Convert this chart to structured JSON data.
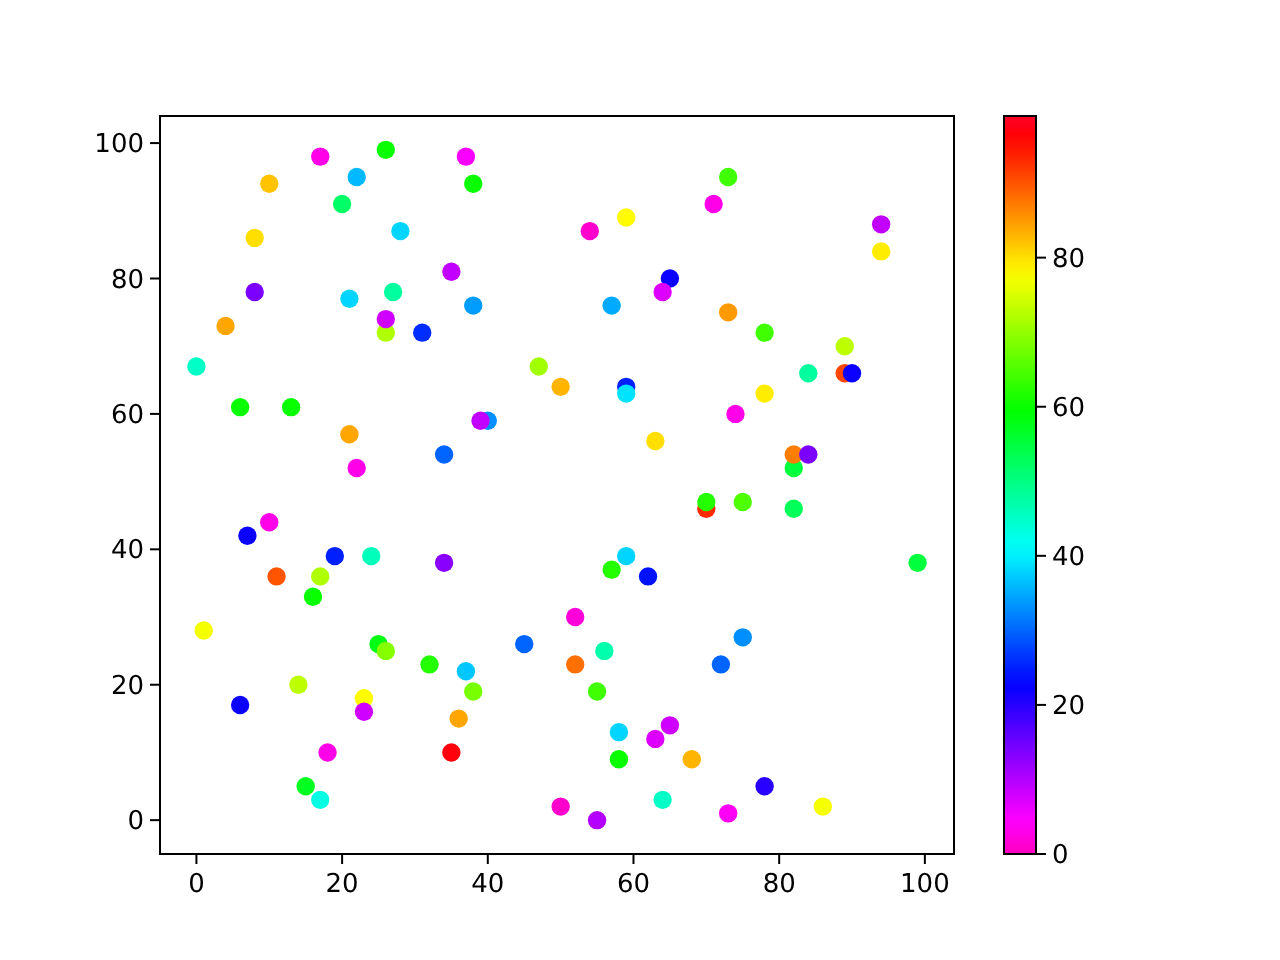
{
  "chart_data": {
    "type": "scatter",
    "x": [
      17,
      26,
      37,
      10,
      22,
      38,
      20,
      28,
      8,
      35,
      8,
      21,
      27,
      38,
      26,
      26,
      31,
      4,
      0,
      47,
      50,
      6,
      13,
      40,
      39,
      21,
      34,
      22,
      73,
      71,
      59,
      54,
      94,
      94,
      65,
      64,
      57,
      73,
      78,
      89,
      59,
      59,
      84,
      89,
      90,
      78,
      74,
      63,
      82,
      82,
      84,
      7,
      10,
      19,
      24,
      34,
      11,
      17,
      16,
      1,
      25,
      26,
      45,
      32,
      37,
      38,
      14,
      6,
      23,
      23,
      36,
      35,
      18,
      15,
      17,
      50,
      52,
      52,
      70,
      70,
      75,
      82,
      99,
      59,
      57,
      62,
      56,
      75,
      72,
      55,
      58,
      65,
      63,
      58,
      68,
      78,
      64,
      55,
      73,
      86
    ],
    "values": [
      98,
      99,
      98,
      94,
      95,
      94,
      91,
      87,
      86,
      81,
      78,
      77,
      78,
      76,
      72,
      74,
      72,
      73,
      67,
      67,
      64,
      61,
      61,
      59,
      59,
      57,
      54,
      52,
      95,
      91,
      89,
      87,
      88,
      84,
      80,
      78,
      76,
      75,
      72,
      70,
      64,
      63,
      66,
      66,
      66,
      63,
      60,
      56,
      52,
      54,
      54,
      42,
      44,
      39,
      39,
      38,
      36,
      36,
      33,
      28,
      26,
      25,
      26,
      23,
      22,
      19,
      20,
      17,
      18,
      16,
      15,
      10,
      10,
      5,
      3,
      2,
      30,
      23,
      46,
      47,
      47,
      46,
      38,
      39,
      37,
      36,
      25,
      27,
      23,
      19,
      13,
      14,
      12,
      9,
      9,
      5,
      3,
      0,
      1,
      2
    ],
    "cvalues": [
      3,
      60,
      5,
      82,
      36,
      60,
      52,
      38,
      80,
      9,
      14,
      38,
      48,
      34,
      72,
      8,
      26,
      84,
      45,
      71,
      83,
      60,
      60,
      33,
      9,
      84,
      30,
      3,
      64,
      3,
      78,
      1,
      9,
      79,
      22,
      7,
      35,
      85,
      64,
      73,
      25,
      39,
      48,
      91,
      22,
      79,
      3,
      80,
      55,
      87,
      14,
      22,
      3,
      25,
      46,
      13,
      90,
      72,
      60,
      77,
      58,
      69,
      30,
      62,
      37,
      68,
      73,
      22,
      78,
      8,
      84,
      97,
      3,
      57,
      43,
      1,
      2,
      88,
      93,
      62,
      65,
      53,
      55,
      38,
      62,
      24,
      47,
      33,
      30,
      64,
      38,
      8,
      7,
      60,
      83,
      20,
      45,
      10,
      4,
      77
    ],
    "clim": [
      0,
      99
    ],
    "cticks": [
      0,
      20,
      40,
      60,
      80
    ],
    "xlim": [
      -5,
      104
    ],
    "ylim": [
      -5,
      104
    ],
    "xticks": [
      0,
      20,
      40,
      60,
      80,
      100
    ],
    "yticks": [
      0,
      20,
      40,
      60,
      80,
      100
    ],
    "marker": "circle"
  }
}
